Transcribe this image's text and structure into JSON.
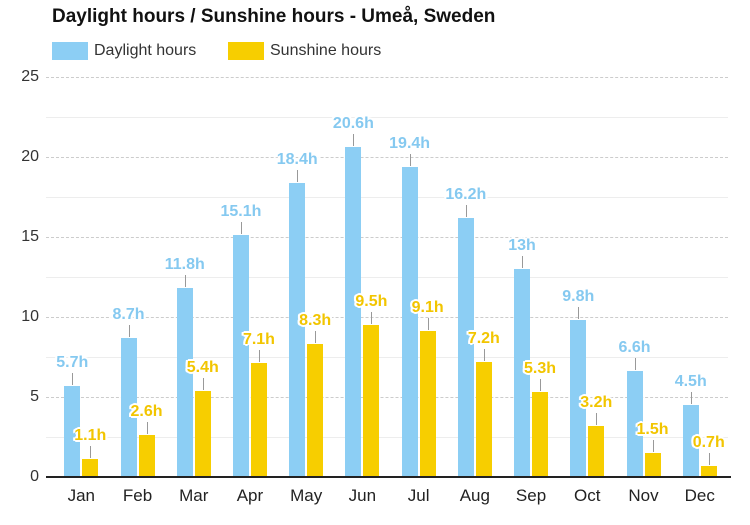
{
  "title": "Daylight hours / Sunshine hours - Umeå, Sweden",
  "legend": {
    "items": [
      {
        "label": "Daylight hours",
        "color": "#8CCEF4"
      },
      {
        "label": "Sunshine hours",
        "color": "#F7CE00"
      }
    ]
  },
  "chart_data": {
    "type": "bar",
    "title": "Daylight hours / Sunshine hours - Umeå, Sweden",
    "categories": [
      "Jan",
      "Feb",
      "Mar",
      "Apr",
      "May",
      "Jun",
      "Jul",
      "Aug",
      "Sep",
      "Oct",
      "Nov",
      "Dec"
    ],
    "series": [
      {
        "name": "Daylight hours",
        "color": "#8CCEF4",
        "label_color": "#85C9F0",
        "values": [
          5.7,
          8.7,
          11.8,
          15.1,
          18.4,
          20.6,
          19.4,
          16.2,
          13,
          9.8,
          6.6,
          4.5
        ],
        "labels": [
          "5.7h",
          "8.7h",
          "11.8h",
          "15.1h",
          "18.4h",
          "20.6h",
          "19.4h",
          "16.2h",
          "13h",
          "9.8h",
          "6.6h",
          "4.5h"
        ]
      },
      {
        "name": "Sunshine hours",
        "color": "#F7CE00",
        "label_color": "#F2C500",
        "values": [
          1.1,
          2.6,
          5.4,
          7.1,
          8.3,
          9.5,
          9.1,
          7.2,
          5.3,
          3.2,
          1.5,
          0.7
        ],
        "labels": [
          "1.1h",
          "2.6h",
          "5.4h",
          "7.1h",
          "8.3h",
          "9.5h",
          "9.1h",
          "7.2h",
          "5.3h",
          "3.2h",
          "1.5h",
          "0.7h"
        ]
      }
    ],
    "xlabel": "",
    "ylabel": "",
    "ylim": [
      0,
      25
    ],
    "yticks": [
      0,
      5,
      10,
      15,
      20,
      25
    ],
    "minor_yticks": [
      2.5,
      7.5,
      12.5,
      17.5,
      22.5
    ],
    "grid": true,
    "legend_position": "top-left"
  }
}
